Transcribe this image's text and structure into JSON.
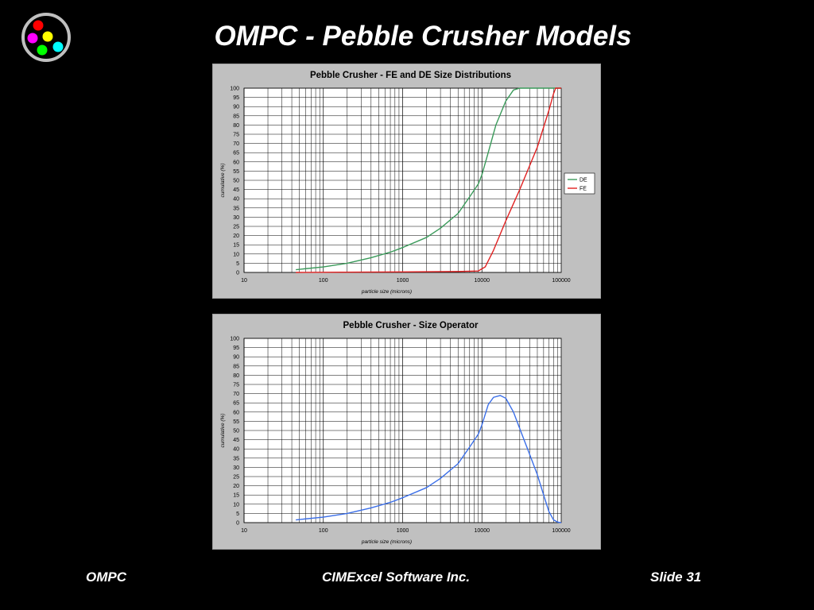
{
  "slide": {
    "title": "OMPC - Pebble Crusher Models",
    "footer_left": "OMPC",
    "footer_center": "CIMExcel Software Inc.",
    "footer_right": "Slide 31"
  },
  "logo": {
    "ring_color": "#c0c0c0",
    "dot_colors": [
      "#ff0000",
      "#ff00ff",
      "#ffff00",
      "#00ff00",
      "#00ffff"
    ]
  },
  "chart_data": [
    {
      "type": "line",
      "title": "Pebble Crusher - FE and DE Size Distributions",
      "xlabel": "particle size  (microns)",
      "ylabel": "cumulative (%)",
      "x_scale": "log",
      "xlim": [
        10,
        100000
      ],
      "ylim": [
        0,
        100
      ],
      "x_ticks": [
        "10",
        "100",
        "1000",
        "10000",
        "100000"
      ],
      "y_ticks": [
        "0",
        "5",
        "10",
        "15",
        "20",
        "25",
        "30",
        "35",
        "40",
        "45",
        "50",
        "55",
        "60",
        "65",
        "70",
        "75",
        "80",
        "85",
        "90",
        "95",
        "100"
      ],
      "grid": true,
      "legend_position": "right",
      "series": [
        {
          "name": "DE",
          "color": "#3a9a5a",
          "points": [
            [
              45,
              1.5
            ],
            [
              100,
              3
            ],
            [
              200,
              5
            ],
            [
              400,
              8
            ],
            [
              700,
              11
            ],
            [
              1000,
              13.5
            ],
            [
              2000,
              19
            ],
            [
              3000,
              24
            ],
            [
              5000,
              32
            ],
            [
              7000,
              41
            ],
            [
              9000,
              48
            ],
            [
              10000,
              53
            ],
            [
              12000,
              65
            ],
            [
              15000,
              80
            ],
            [
              20000,
              93
            ],
            [
              25000,
              99
            ],
            [
              30000,
              100
            ],
            [
              100000,
              100
            ]
          ]
        },
        {
          "name": "FE",
          "color": "#e02020",
          "points": [
            [
              45,
              0
            ],
            [
              1000,
              0.3
            ],
            [
              5000,
              0.5
            ],
            [
              9000,
              0.8
            ],
            [
              11000,
              3
            ],
            [
              14000,
              12
            ],
            [
              20000,
              28
            ],
            [
              30000,
              45
            ],
            [
              50000,
              68
            ],
            [
              70000,
              88
            ],
            [
              80000,
              97
            ],
            [
              85000,
              100
            ],
            [
              100000,
              100
            ]
          ]
        }
      ]
    },
    {
      "type": "line",
      "title": "Pebble Crusher - Size Operator",
      "xlabel": "particle size  (microns)",
      "ylabel": "cumulative (%)",
      "x_scale": "log",
      "xlim": [
        10,
        100000
      ],
      "ylim": [
        0,
        100
      ],
      "x_ticks": [
        "10",
        "100",
        "1000",
        "10000",
        "100000"
      ],
      "y_ticks": [
        "0",
        "5",
        "10",
        "15",
        "20",
        "25",
        "30",
        "35",
        "40",
        "45",
        "50",
        "55",
        "60",
        "65",
        "70",
        "75",
        "80",
        "85",
        "90",
        "95",
        "100"
      ],
      "grid": true,
      "series": [
        {
          "color": "#3a6ee8",
          "points": [
            [
              45,
              1.5
            ],
            [
              100,
              3
            ],
            [
              200,
              5
            ],
            [
              400,
              8
            ],
            [
              700,
              11
            ],
            [
              1000,
              13.5
            ],
            [
              2000,
              19
            ],
            [
              3000,
              24
            ],
            [
              5000,
              32
            ],
            [
              7000,
              41
            ],
            [
              9000,
              48
            ],
            [
              10000,
              53
            ],
            [
              12000,
              64
            ],
            [
              14000,
              68
            ],
            [
              17000,
              69
            ],
            [
              20000,
              67.5
            ],
            [
              25000,
              60
            ],
            [
              30000,
              51
            ],
            [
              40000,
              37
            ],
            [
              50000,
              26
            ],
            [
              60000,
              15
            ],
            [
              70000,
              6
            ],
            [
              80000,
              1.5
            ],
            [
              90000,
              0.3
            ],
            [
              100000,
              0
            ]
          ]
        }
      ]
    }
  ]
}
